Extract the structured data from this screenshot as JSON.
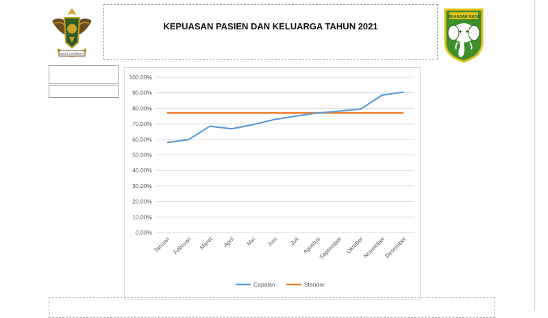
{
  "header": {
    "title": "KEPUASAN PASIEN DAN KELUARGA TAHUN 2021",
    "left_logo_motto": "MEST SAMRKAY",
    "right_logo_text": "ISKANDAR MUDA"
  },
  "colors": {
    "capalan": "#5b9bd5",
    "standar": "#ed7d31",
    "gridline": "#d9d9d9",
    "axis_text": "#595959"
  },
  "chart_data": {
    "type": "line",
    "title": "",
    "xlabel": "",
    "ylabel": "",
    "categories": [
      "Januari",
      "Februari",
      "Maret",
      "April",
      "Mei",
      "Juni",
      "Juli",
      "Agustus",
      "September",
      "Oktober",
      "November",
      "Desember"
    ],
    "series": [
      {
        "name": "Capalan",
        "values": [
          58.0,
          59.8,
          68.5,
          66.8,
          69.5,
          72.8,
          75.0,
          77.0,
          78.2,
          79.5,
          88.5,
          90.5
        ]
      },
      {
        "name": "Standar",
        "values": [
          77.0,
          77.0,
          77.0,
          77.0,
          77.0,
          77.0,
          77.0,
          77.0,
          77.0,
          77.0,
          77.0,
          77.0
        ]
      }
    ],
    "ylim": [
      0,
      100
    ],
    "yticks": [
      "0.00%",
      "10.00%",
      "20.00%",
      "30.00%",
      "40.00%",
      "50.00%",
      "60.00%",
      "70.00%",
      "80.00%",
      "90.00%",
      "100.00%"
    ],
    "grid": true,
    "legend": "bottom"
  }
}
